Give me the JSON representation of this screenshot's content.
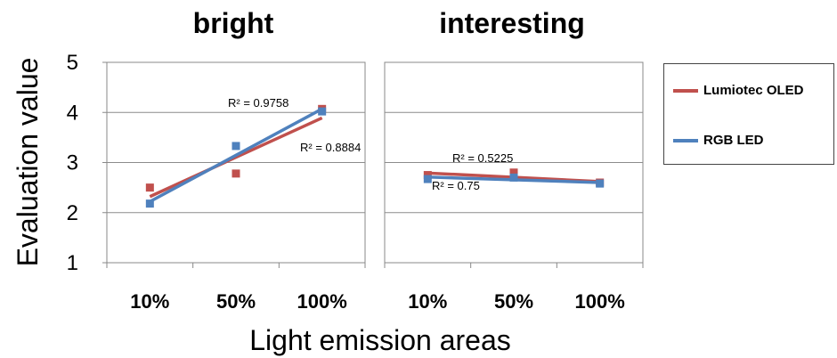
{
  "figure": {
    "ylabel": "Evaluation value",
    "xlabel": "Light emission areas",
    "legend": [
      {
        "name": "Lumiotec OLED",
        "color": "#c0504d"
      },
      {
        "name": "RGB LED",
        "color": "#4f81bd"
      }
    ]
  },
  "chart_data": [
    {
      "type": "scatter",
      "title": "bright",
      "categories": [
        "10%",
        "50%",
        "100%"
      ],
      "ylim": [
        1,
        5
      ],
      "yticks": [
        1,
        2,
        3,
        4,
        5
      ],
      "grid": true,
      "series": [
        {
          "name": "Lumiotec OLED",
          "color": "#c0504d",
          "values": [
            2.5,
            2.78,
            4.07
          ],
          "trendline": {
            "start": 2.32,
            "end": 3.89,
            "r2_label": "R² = 0.8884"
          }
        },
        {
          "name": "RGB LED",
          "color": "#4f81bd",
          "values": [
            2.18,
            3.33,
            4.02
          ],
          "trendline": {
            "start": 2.22,
            "end": 4.07,
            "r2_label": "R² = 0.9758"
          }
        }
      ]
    },
    {
      "type": "scatter",
      "title": "interesting",
      "categories": [
        "10%",
        "50%",
        "100%"
      ],
      "ylim": [
        1,
        5
      ],
      "grid": true,
      "series": [
        {
          "name": "Lumiotec OLED",
          "color": "#c0504d",
          "values": [
            2.75,
            2.8,
            2.6
          ],
          "trendline": {
            "start": 2.79,
            "end": 2.62,
            "r2_label": "R² = 0.5225"
          }
        },
        {
          "name": "RGB LED",
          "color": "#4f81bd",
          "values": [
            2.67,
            2.7,
            2.58
          ],
          "trendline": {
            "start": 2.71,
            "end": 2.6,
            "r2_label": "R² = 0.75"
          }
        }
      ]
    }
  ]
}
